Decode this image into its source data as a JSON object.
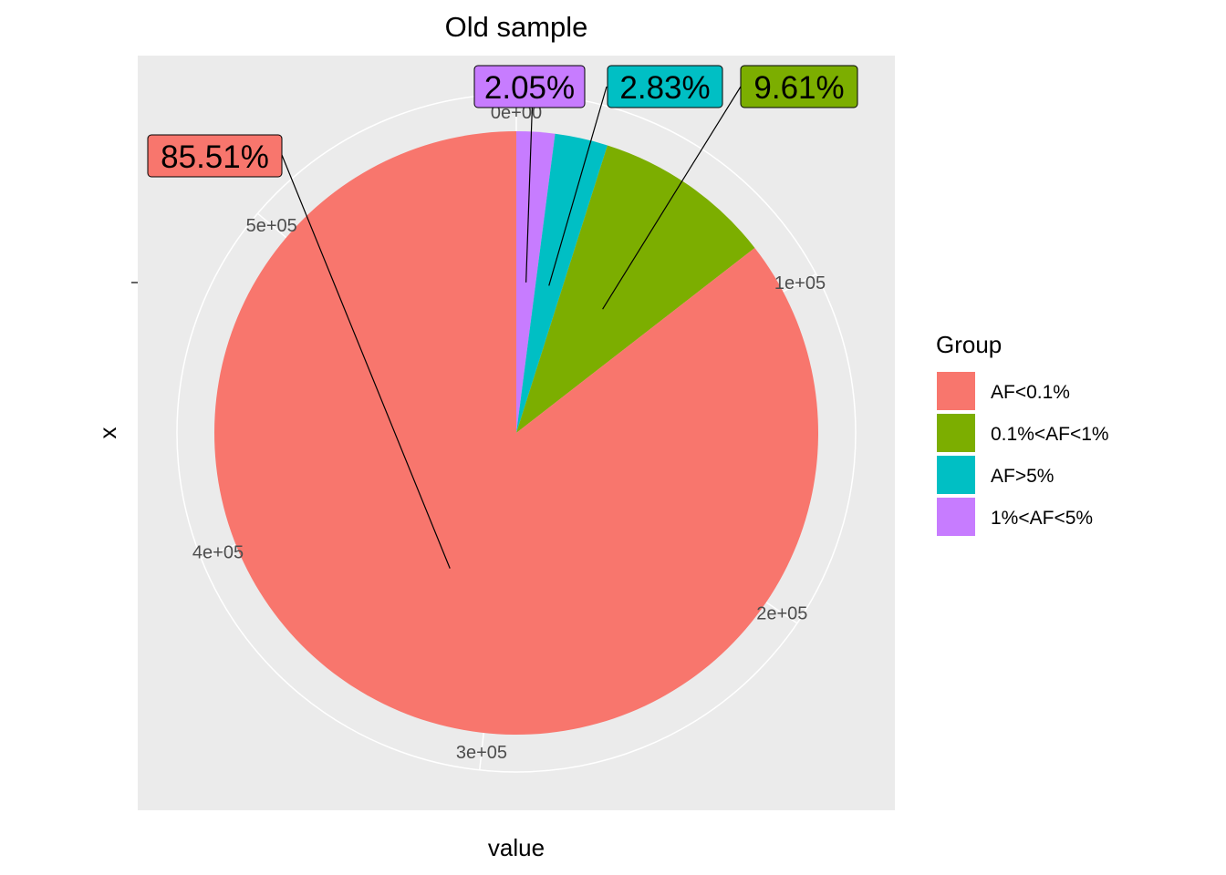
{
  "chart_data": {
    "type": "pie",
    "title": "Old sample",
    "xlabel": "value",
    "ylabel": "x",
    "coord": "polar, clockwise from top",
    "total_max_axis": 580000,
    "axis_ticks": [
      "0e+00",
      "1e+05",
      "2e+05",
      "3e+05",
      "4e+05",
      "5e+05"
    ],
    "axis_tick_values": [
      0,
      100000,
      200000,
      300000,
      400000,
      500000
    ],
    "grid": true,
    "legend": {
      "title": "Group",
      "position": "right",
      "entries": [
        "AF<0.1%",
        "0.1%<AF<1%",
        "AF>5%",
        "1%<AF<5%"
      ]
    },
    "slices": [
      {
        "group": "1%<AF<5%",
        "percent": 2.05,
        "label": "2.05%",
        "color": "#C77CFF",
        "value": 11500
      },
      {
        "group": "AF>5%",
        "percent": 2.83,
        "label": "2.83%",
        "color": "#00BFC4",
        "value": 15900
      },
      {
        "group": "0.1%<AF<1%",
        "percent": 9.61,
        "label": "9.61%",
        "color": "#7CAE00",
        "value": 53900
      },
      {
        "group": "AF<0.1%",
        "percent": 85.51,
        "label": "85.51%",
        "color": "#F8766D",
        "value": 479700
      }
    ],
    "legend_colors": [
      "#F8766D",
      "#7CAE00",
      "#00BFC4",
      "#C77CFF"
    ],
    "panel_background": "#EBEBEB",
    "grid_color": "#FFFFFF"
  }
}
